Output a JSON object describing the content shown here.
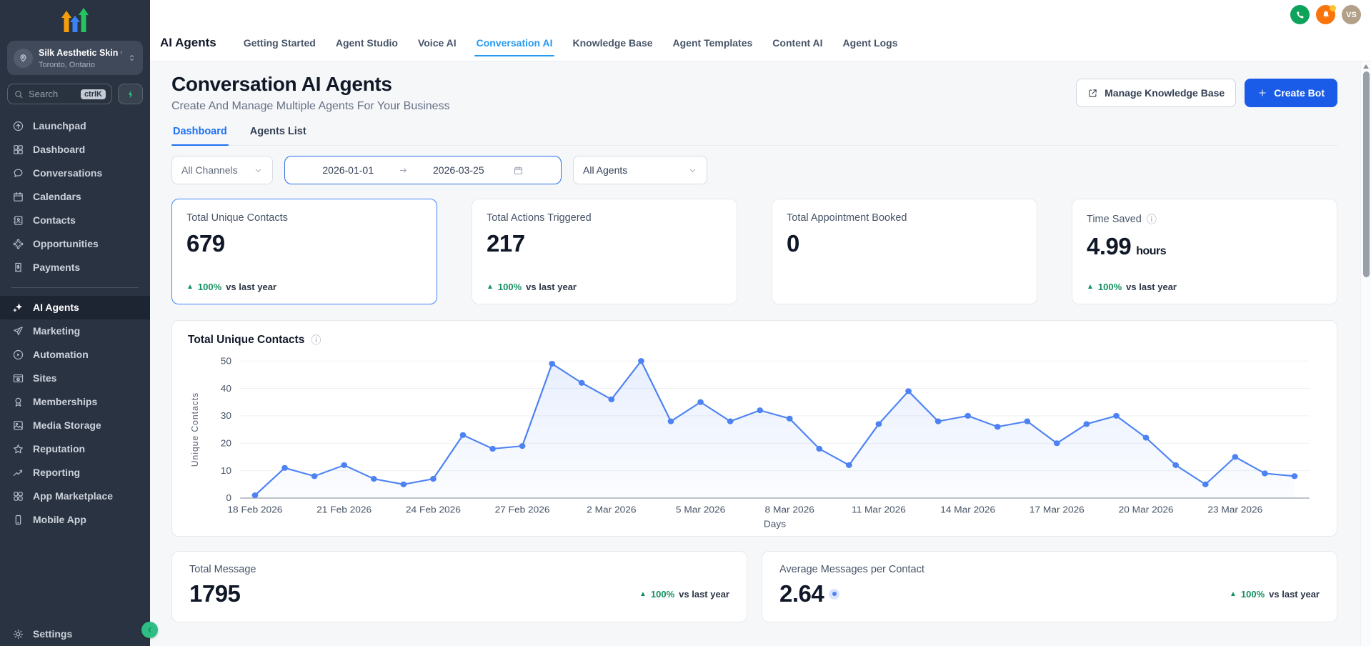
{
  "icons": {
    "trend_up": "▲",
    "info": "ⓘ"
  },
  "colors": {
    "sidebar_bg": "#2a3342",
    "accent_blue": "#1a5ce8",
    "tab_blue": "#259af2",
    "page_tab_blue": "#1d6ff2",
    "delta_green": "#12915f",
    "chart_line": "#4d82f3",
    "selected_card_border": "#4385f5",
    "phone_green": "#0ea35a",
    "bell_orange": "#f9740b"
  },
  "sidebar": {
    "account": {
      "name": "Silk Aesthetic Skin C...",
      "location": "Toronto, Ontario"
    },
    "search": {
      "placeholder": "Search",
      "shortcut": "ctrlK"
    },
    "items": [
      {
        "label": "Launchpad"
      },
      {
        "label": "Dashboard"
      },
      {
        "label": "Conversations"
      },
      {
        "label": "Calendars"
      },
      {
        "label": "Contacts"
      },
      {
        "label": "Opportunities"
      },
      {
        "label": "Payments"
      },
      {
        "label": "AI Agents"
      },
      {
        "label": "Marketing"
      },
      {
        "label": "Automation"
      },
      {
        "label": "Sites"
      },
      {
        "label": "Memberships"
      },
      {
        "label": "Media Storage"
      },
      {
        "label": "Reputation"
      },
      {
        "label": "Reporting"
      },
      {
        "label": "App Marketplace"
      },
      {
        "label": "Mobile App"
      }
    ],
    "settings_label": "Settings"
  },
  "topbar": {
    "title": "AI Agents",
    "tabs": [
      "Getting Started",
      "Agent Studio",
      "Voice AI",
      "Conversation AI",
      "Knowledge Base",
      "Agent Templates",
      "Content AI",
      "Agent Logs"
    ],
    "active_tab": "Conversation AI",
    "avatar_initials": "VS"
  },
  "page": {
    "title": "Conversation AI Agents",
    "subtitle": "Create And Manage Multiple Agents For Your Business",
    "buttons": {
      "manage_kb": "Manage Knowledge Base",
      "create_bot": "Create Bot"
    },
    "tabs": [
      "Dashboard",
      "Agents List"
    ],
    "filters": {
      "channels": "All Channels",
      "date_start": "2026-01-01",
      "date_end": "2026-03-25",
      "agents": "All Agents"
    }
  },
  "stats": [
    {
      "label": "Total Unique Contacts",
      "value": "679",
      "delta": "100%",
      "delta_suffix": "vs last year"
    },
    {
      "label": "Total Actions Triggered",
      "value": "217",
      "delta": "100%",
      "delta_suffix": "vs last year"
    },
    {
      "label": "Total Appointment Booked",
      "value": "0"
    },
    {
      "label": "Time Saved",
      "value": "4.99",
      "unit": "hours",
      "delta": "100%",
      "delta_suffix": "vs last year"
    }
  ],
  "chart_data": {
    "type": "line",
    "title": "Total Unique Contacts",
    "xlabel": "Days",
    "ylabel": "Unique Contacts",
    "ylim": [
      0,
      50
    ],
    "yticks": [
      0,
      10,
      20,
      30,
      40,
      50
    ],
    "values": [
      1,
      11,
      8,
      12,
      7,
      5,
      7,
      23,
      18,
      19,
      49,
      42,
      36,
      50,
      28,
      35,
      28,
      32,
      29,
      18,
      12,
      27,
      39,
      28,
      30,
      26,
      28,
      20,
      27,
      30,
      22,
      12,
      5,
      15,
      9,
      8
    ],
    "xtick_labels": [
      "18 Feb 2026",
      "21 Feb 2026",
      "24 Feb 2026",
      "27 Feb 2026",
      "2 Mar 2026",
      "5 Mar 2026",
      "8 Mar 2026",
      "11 Mar 2026",
      "14 Mar 2026",
      "17 Mar 2026",
      "20 Mar 2026",
      "23 Mar 2026"
    ],
    "xtick_every": 3,
    "line_color": "#4d82f3",
    "grid": true,
    "legend": false
  },
  "bottom_stats": [
    {
      "label": "Total Message",
      "value": "1795",
      "delta": "100%",
      "delta_suffix": "vs last year"
    },
    {
      "label": "Average Messages per Contact",
      "value": "2.64",
      "delta": "100%",
      "delta_suffix": "vs last year"
    }
  ]
}
